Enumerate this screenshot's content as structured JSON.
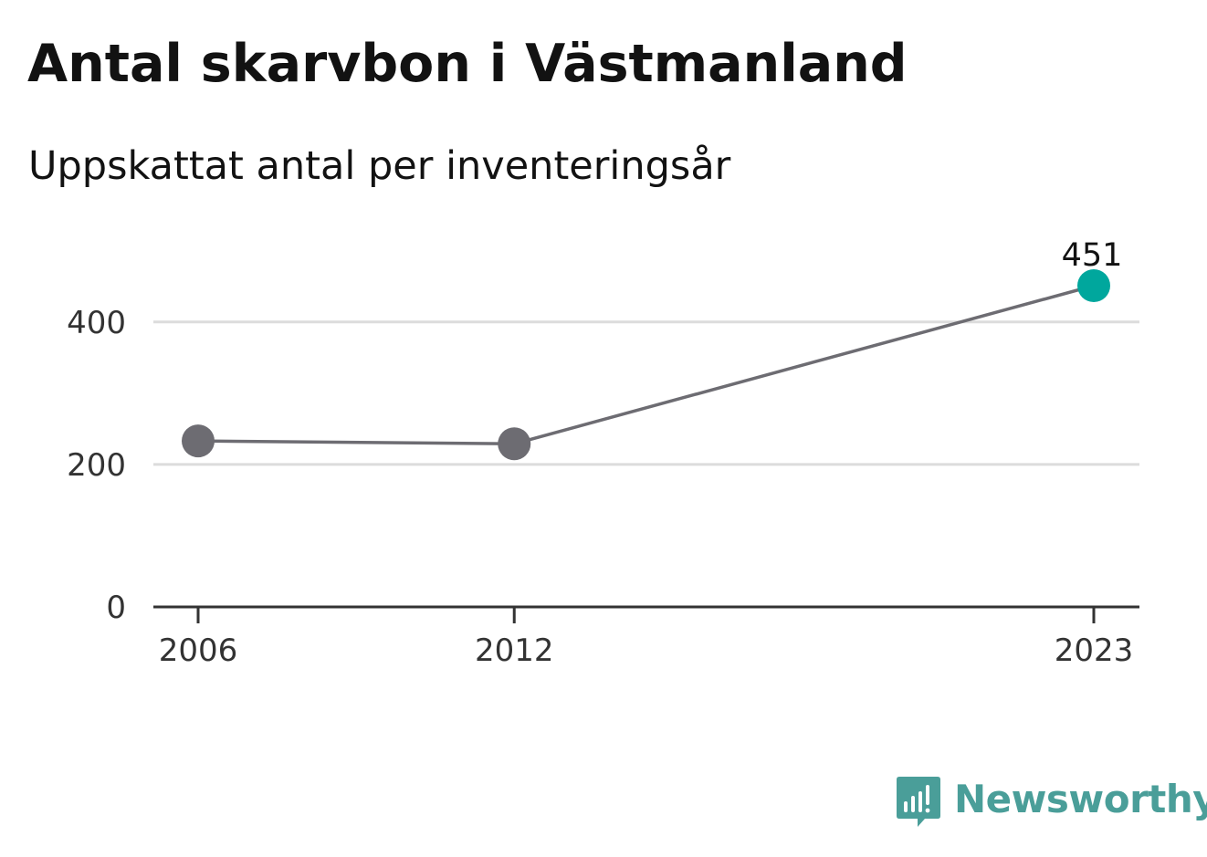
{
  "title": "Antal skarvbon i Västmanland",
  "subtitle": "Uppskattat antal per inventeringsår",
  "brand": {
    "name": "Newsworthy",
    "color": "#4a9e99",
    "icon": "newsworthy-logo-icon"
  },
  "colors": {
    "line": "#6d6c72",
    "point": "#6d6c72",
    "highlight": "#00a79d",
    "grid": "#dcdcdc",
    "axis": "#333333"
  },
  "chart_data": {
    "type": "line",
    "x": [
      "2006",
      "2012",
      "2023"
    ],
    "series": [
      {
        "values": [
          233,
          229,
          451
        ]
      }
    ],
    "highlight": {
      "x": "2023",
      "value": 451,
      "label": "451"
    },
    "y_ticks": [
      0,
      200,
      400
    ],
    "x_ticks": [
      "2006",
      "2012",
      "2023"
    ],
    "ylim": [
      0,
      451
    ],
    "xlim": [
      2006,
      2023
    ],
    "grid": true,
    "xlabel": "",
    "ylabel": ""
  }
}
